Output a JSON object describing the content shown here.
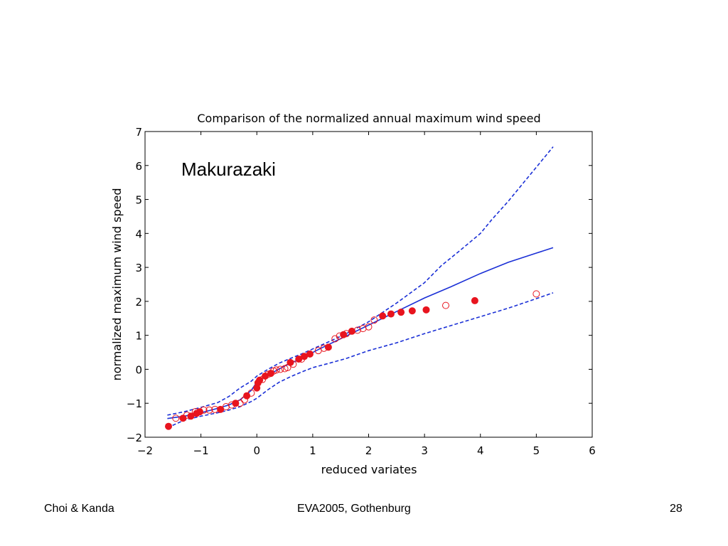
{
  "chart_data": {
    "type": "scatter",
    "title": "Comparison of the normalized annual maximum wind speed",
    "annotation": "Makurazaki",
    "xlabel": "reduced variates",
    "ylabel": "normalized maximum wind speed",
    "xlim": [
      -2,
      6
    ],
    "ylim": [
      -2,
      7
    ],
    "xticks": [
      -2,
      -1,
      0,
      1,
      2,
      3,
      4,
      5,
      6
    ],
    "yticks": [
      -2,
      -1,
      0,
      1,
      2,
      3,
      4,
      5,
      6,
      7
    ],
    "xtick_labels": [
      "−2",
      "−1",
      "0",
      "1",
      "2",
      "3",
      "4",
      "5",
      "6"
    ],
    "ytick_labels": [
      "−2",
      "−1",
      "0",
      "1",
      "2",
      "3",
      "4",
      "5",
      "6",
      "7"
    ],
    "grid": false,
    "colors": {
      "points": "#e8141e",
      "lines": "#1a2fd6",
      "axes": "#000000"
    },
    "series": [
      {
        "style": "filled-circle",
        "x": [
          -1.58,
          -1.32,
          -1.18,
          -1.08,
          -1.02,
          -0.65,
          -0.38,
          -0.18,
          0.0,
          0.02,
          0.05,
          0.15,
          0.25,
          0.6,
          0.75,
          0.85,
          0.95,
          1.28,
          1.55,
          1.7,
          2.25,
          2.4,
          2.58,
          2.78,
          3.03,
          3.9
        ],
        "y": [
          -1.68,
          -1.44,
          -1.38,
          -1.3,
          -1.25,
          -1.18,
          -1.0,
          -0.78,
          -0.55,
          -0.4,
          -0.32,
          -0.2,
          -0.12,
          0.2,
          0.3,
          0.38,
          0.45,
          0.65,
          1.02,
          1.12,
          1.57,
          1.63,
          1.68,
          1.72,
          1.75,
          2.02
        ]
      },
      {
        "style": "open-circle",
        "x": [
          -1.45,
          -1.25,
          -1.1,
          -0.95,
          -0.85,
          -0.75,
          -0.55,
          -0.45,
          -0.3,
          -0.22,
          -0.1,
          0.1,
          0.2,
          0.3,
          0.35,
          0.42,
          0.5,
          0.55,
          0.65,
          0.8,
          1.1,
          1.2,
          1.4,
          1.48,
          1.6,
          1.8,
          1.9,
          2.0,
          2.1,
          3.38,
          5.0
        ],
        "y": [
          -1.44,
          -1.35,
          -1.25,
          -1.2,
          -1.2,
          -1.18,
          -1.1,
          -1.05,
          -1.0,
          -0.9,
          -0.7,
          -0.3,
          -0.15,
          -0.05,
          -0.02,
          0.0,
          0.02,
          0.05,
          0.15,
          0.3,
          0.55,
          0.62,
          0.9,
          0.98,
          1.05,
          1.15,
          1.2,
          1.25,
          1.45,
          1.88,
          2.22
        ]
      },
      {
        "style": "solid-line",
        "x": [
          -1.6,
          -1.3,
          -1.0,
          -0.7,
          -0.5,
          -0.3,
          -0.1,
          0.0,
          0.15,
          0.3,
          0.5,
          0.8,
          1.1,
          1.5,
          2.0,
          2.5,
          3.0,
          3.5,
          4.0,
          4.5,
          5.0,
          5.3
        ],
        "y": [
          -1.45,
          -1.38,
          -1.28,
          -1.15,
          -1.05,
          -0.9,
          -0.62,
          -0.38,
          -0.2,
          -0.08,
          0.1,
          0.32,
          0.58,
          0.9,
          1.3,
          1.7,
          2.1,
          2.45,
          2.82,
          3.15,
          3.42,
          3.58
        ]
      },
      {
        "style": "dashed-line",
        "x": [
          -1.6,
          -1.3,
          -1.0,
          -0.7,
          -0.5,
          -0.3,
          -0.1,
          0.0,
          0.2,
          0.4,
          0.6,
          0.8,
          1.0,
          1.3,
          1.6,
          2.0,
          2.5,
          3.0,
          3.3,
          3.6,
          4.0,
          4.2,
          4.5,
          4.8,
          5.0,
          5.2,
          5.3
        ],
        "y": [
          -1.35,
          -1.25,
          -1.12,
          -0.98,
          -0.8,
          -0.55,
          -0.35,
          -0.2,
          0.0,
          0.18,
          0.32,
          0.45,
          0.6,
          0.82,
          1.05,
          1.4,
          1.95,
          2.55,
          3.05,
          3.45,
          4.0,
          4.4,
          4.95,
          5.55,
          5.95,
          6.35,
          6.55
        ]
      },
      {
        "style": "dashed-line",
        "x": [
          -1.6,
          -1.3,
          -1.0,
          -0.7,
          -0.5,
          -0.3,
          -0.1,
          0.0,
          0.2,
          0.4,
          0.6,
          0.8,
          1.0,
          1.3,
          1.6,
          2.0,
          2.5,
          3.0,
          3.5,
          4.0,
          4.5,
          5.0,
          5.3
        ],
        "y": [
          -1.72,
          -1.5,
          -1.38,
          -1.28,
          -1.2,
          -1.1,
          -0.95,
          -0.85,
          -0.6,
          -0.38,
          -0.22,
          -0.08,
          0.05,
          0.18,
          0.32,
          0.55,
          0.78,
          1.05,
          1.3,
          1.55,
          1.8,
          2.08,
          2.25
        ]
      }
    ]
  },
  "footer": {
    "left": "Choi & Kanda",
    "center": "EVA2005, Gothenburg",
    "right": "28"
  }
}
